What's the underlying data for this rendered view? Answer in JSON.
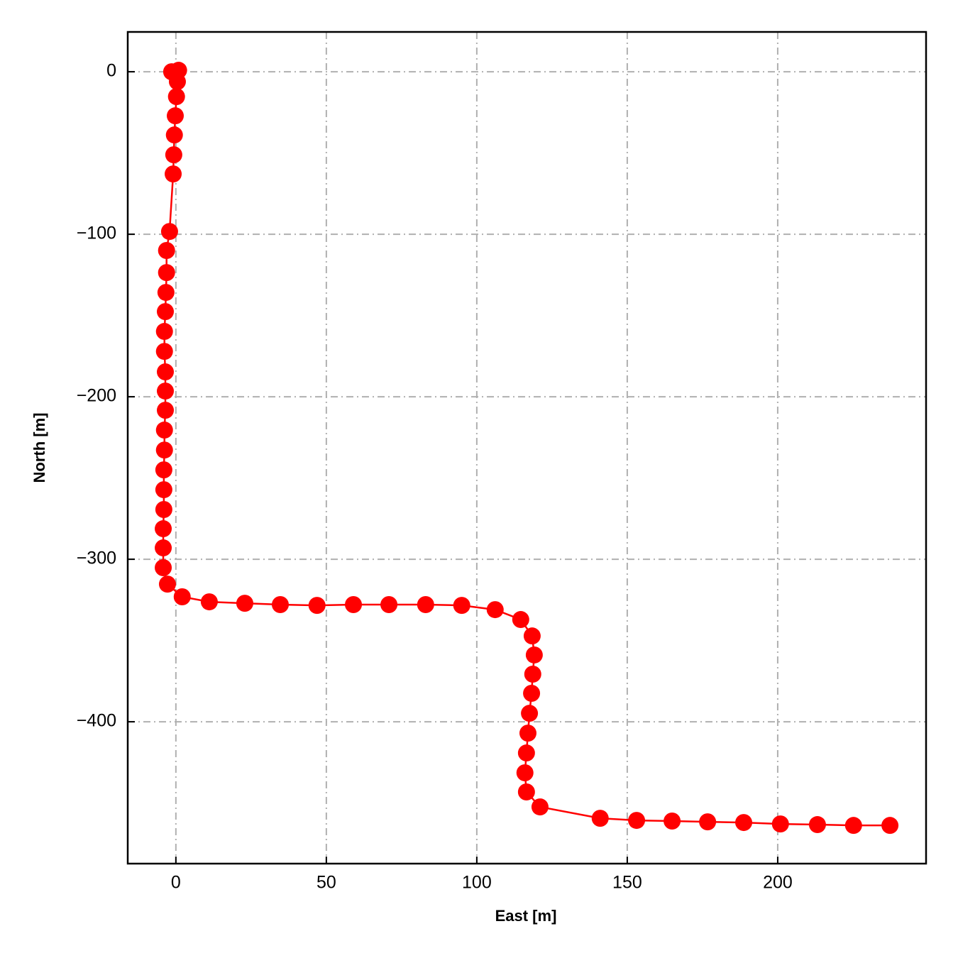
{
  "chart_data": {
    "type": "line",
    "xlabel": "East [m]",
    "ylabel": "North [m]",
    "x": [
      -1.4,
      0.9,
      0.5,
      0.2,
      -0.2,
      -0.5,
      -0.7,
      -0.9,
      -2.1,
      -3.1,
      -3.1,
      -3.3,
      -3.5,
      -3.8,
      -3.8,
      -3.5,
      -3.5,
      -3.5,
      -3.8,
      -3.8,
      -4.0,
      -4.0,
      -4.0,
      -4.2,
      -4.2,
      -4.2,
      -2.8,
      2.1,
      11.1,
      22.9,
      34.7,
      46.9,
      59.0,
      70.8,
      83.0,
      95.0,
      106.1,
      114.6,
      118.4,
      119.1,
      118.6,
      118.2,
      117.5,
      117.0,
      116.5,
      116.0,
      116.5,
      121.0,
      141.0,
      153.1,
      164.9,
      176.7,
      188.7,
      200.9,
      213.2,
      225.2,
      237.3
    ],
    "series": [
      {
        "color": "#ff0000",
        "values": [
          0,
          0.9,
          -6.1,
          -15.3,
          -27.1,
          -38.9,
          -51.1,
          -62.9,
          -98.3,
          -110.0,
          -123.6,
          -135.8,
          -147.6,
          -159.8,
          -172.1,
          -184.7,
          -196.5,
          -208.3,
          -220.5,
          -232.8,
          -245.0,
          -257.2,
          -269.4,
          -281.2,
          -293.0,
          -305.2,
          -315.3,
          -323.1,
          -326.2,
          -327.1,
          -327.9,
          -328.4,
          -327.9,
          -327.9,
          -327.9,
          -328.4,
          -331.0,
          -337.1,
          -347.2,
          -358.9,
          -370.7,
          -382.5,
          -394.8,
          -407.0,
          -419.2,
          -431.4,
          -443.2,
          -452.4,
          -459.4,
          -460.7,
          -461.1,
          -461.6,
          -462.0,
          -462.9,
          -463.3,
          -463.8,
          -463.8
        ]
      }
    ],
    "xlim": [
      -16,
      249.3
    ],
    "ylim": [
      -487.3,
      24.5
    ],
    "xticks": [
      0,
      50,
      100,
      150,
      200
    ],
    "yticks": [
      {
        "value": 0,
        "label": "0"
      },
      {
        "value": -100,
        "label": "−100"
      },
      {
        "value": -200,
        "label": "−200"
      },
      {
        "value": -300,
        "label": "−300"
      },
      {
        "value": -400,
        "label": "−400"
      }
    ],
    "grid": true,
    "marker": true
  }
}
